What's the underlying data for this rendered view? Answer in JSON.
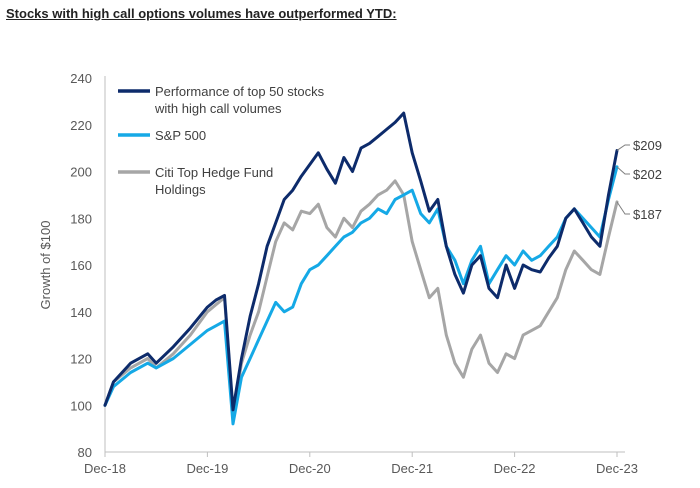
{
  "chart_data": {
    "type": "line",
    "title": "Stocks with high call options volumes have outperformed YTD:",
    "ylabel": "Growth of $100",
    "xlabel": "",
    "ylim": [
      80,
      240
    ],
    "yticks": [
      80,
      100,
      120,
      140,
      160,
      180,
      200,
      220,
      240
    ],
    "xlim": [
      "2018-12",
      "2023-12"
    ],
    "xticks": [
      "Dec-18",
      "Dec-19",
      "Dec-20",
      "Dec-21",
      "Dec-22",
      "Dec-23"
    ],
    "grid": false,
    "legend_position": "top-left",
    "series": [
      {
        "name": "Performance of top 50 stocks with high call volumes",
        "color": "#0d2b6b",
        "end_label": "$209",
        "points": [
          [
            "2018-12",
            100
          ],
          [
            "2019-01",
            110
          ],
          [
            "2019-03",
            118
          ],
          [
            "2019-05",
            122
          ],
          [
            "2019-06",
            118
          ],
          [
            "2019-08",
            125
          ],
          [
            "2019-10",
            133
          ],
          [
            "2019-12",
            142
          ],
          [
            "2020-01",
            145
          ],
          [
            "2020-02",
            147
          ],
          [
            "2020-03",
            98
          ],
          [
            "2020-04",
            120
          ],
          [
            "2020-05",
            138
          ],
          [
            "2020-06",
            152
          ],
          [
            "2020-07",
            168
          ],
          [
            "2020-08",
            178
          ],
          [
            "2020-09",
            188
          ],
          [
            "2020-10",
            192
          ],
          [
            "2020-11",
            198
          ],
          [
            "2020-12",
            203
          ],
          [
            "2021-01",
            208
          ],
          [
            "2021-02",
            201
          ],
          [
            "2021-03",
            195
          ],
          [
            "2021-04",
            206
          ],
          [
            "2021-05",
            200
          ],
          [
            "2021-06",
            210
          ],
          [
            "2021-07",
            212
          ],
          [
            "2021-08",
            215
          ],
          [
            "2021-09",
            218
          ],
          [
            "2021-10",
            221
          ],
          [
            "2021-11",
            225
          ],
          [
            "2021-12",
            208
          ],
          [
            "2022-01",
            196
          ],
          [
            "2022-02",
            183
          ],
          [
            "2022-03",
            188
          ],
          [
            "2022-04",
            168
          ],
          [
            "2022-05",
            156
          ],
          [
            "2022-06",
            148
          ],
          [
            "2022-07",
            160
          ],
          [
            "2022-08",
            164
          ],
          [
            "2022-09",
            150
          ],
          [
            "2022-10",
            146
          ],
          [
            "2022-11",
            160
          ],
          [
            "2022-12",
            150
          ],
          [
            "2023-01",
            160
          ],
          [
            "2023-02",
            158
          ],
          [
            "2023-03",
            157
          ],
          [
            "2023-04",
            163
          ],
          [
            "2023-05",
            168
          ],
          [
            "2023-06",
            180
          ],
          [
            "2023-07",
            184
          ],
          [
            "2023-08",
            178
          ],
          [
            "2023-09",
            172
          ],
          [
            "2023-10",
            168
          ],
          [
            "2023-11",
            190
          ],
          [
            "2023-12",
            209
          ]
        ]
      },
      {
        "name": "S&P 500",
        "color": "#15a9e6",
        "end_label": "$202",
        "points": [
          [
            "2018-12",
            100
          ],
          [
            "2019-01",
            108
          ],
          [
            "2019-03",
            114
          ],
          [
            "2019-05",
            118
          ],
          [
            "2019-06",
            116
          ],
          [
            "2019-08",
            120
          ],
          [
            "2019-10",
            126
          ],
          [
            "2019-12",
            132
          ],
          [
            "2020-01",
            134
          ],
          [
            "2020-02",
            136
          ],
          [
            "2020-03",
            92
          ],
          [
            "2020-04",
            112
          ],
          [
            "2020-05",
            120
          ],
          [
            "2020-06",
            128
          ],
          [
            "2020-07",
            136
          ],
          [
            "2020-08",
            144
          ],
          [
            "2020-09",
            140
          ],
          [
            "2020-10",
            142
          ],
          [
            "2020-11",
            152
          ],
          [
            "2020-12",
            158
          ],
          [
            "2021-01",
            160
          ],
          [
            "2021-02",
            164
          ],
          [
            "2021-03",
            168
          ],
          [
            "2021-04",
            172
          ],
          [
            "2021-05",
            174
          ],
          [
            "2021-06",
            178
          ],
          [
            "2021-07",
            180
          ],
          [
            "2021-08",
            184
          ],
          [
            "2021-09",
            182
          ],
          [
            "2021-10",
            188
          ],
          [
            "2021-11",
            190
          ],
          [
            "2021-12",
            192
          ],
          [
            "2022-01",
            182
          ],
          [
            "2022-02",
            178
          ],
          [
            "2022-03",
            184
          ],
          [
            "2022-04",
            168
          ],
          [
            "2022-05",
            162
          ],
          [
            "2022-06",
            152
          ],
          [
            "2022-07",
            162
          ],
          [
            "2022-08",
            168
          ],
          [
            "2022-09",
            152
          ],
          [
            "2022-10",
            158
          ],
          [
            "2022-11",
            164
          ],
          [
            "2022-12",
            160
          ],
          [
            "2023-01",
            166
          ],
          [
            "2023-02",
            162
          ],
          [
            "2023-03",
            164
          ],
          [
            "2023-04",
            168
          ],
          [
            "2023-05",
            172
          ],
          [
            "2023-06",
            180
          ],
          [
            "2023-07",
            184
          ],
          [
            "2023-08",
            180
          ],
          [
            "2023-09",
            176
          ],
          [
            "2023-10",
            172
          ],
          [
            "2023-11",
            188
          ],
          [
            "2023-12",
            202
          ]
        ]
      },
      {
        "name": "Citi Top Hedge Fund Holdings",
        "color": "#a6a6a6",
        "end_label": "$187",
        "points": [
          [
            "2018-12",
            100
          ],
          [
            "2019-01",
            110
          ],
          [
            "2019-03",
            116
          ],
          [
            "2019-05",
            120
          ],
          [
            "2019-06",
            116
          ],
          [
            "2019-08",
            122
          ],
          [
            "2019-10",
            130
          ],
          [
            "2019-12",
            140
          ],
          [
            "2020-01",
            143
          ],
          [
            "2020-02",
            146
          ],
          [
            "2020-03",
            96
          ],
          [
            "2020-04",
            118
          ],
          [
            "2020-05",
            130
          ],
          [
            "2020-06",
            140
          ],
          [
            "2020-07",
            155
          ],
          [
            "2020-08",
            170
          ],
          [
            "2020-09",
            178
          ],
          [
            "2020-10",
            175
          ],
          [
            "2020-11",
            183
          ],
          [
            "2020-12",
            182
          ],
          [
            "2021-01",
            186
          ],
          [
            "2021-02",
            176
          ],
          [
            "2021-03",
            172
          ],
          [
            "2021-04",
            180
          ],
          [
            "2021-05",
            176
          ],
          [
            "2021-06",
            183
          ],
          [
            "2021-07",
            186
          ],
          [
            "2021-08",
            190
          ],
          [
            "2021-09",
            192
          ],
          [
            "2021-10",
            196
          ],
          [
            "2021-11",
            190
          ],
          [
            "2021-12",
            170
          ],
          [
            "2022-01",
            158
          ],
          [
            "2022-02",
            146
          ],
          [
            "2022-03",
            150
          ],
          [
            "2022-04",
            130
          ],
          [
            "2022-05",
            118
          ],
          [
            "2022-06",
            112
          ],
          [
            "2022-07",
            124
          ],
          [
            "2022-08",
            130
          ],
          [
            "2022-09",
            118
          ],
          [
            "2022-10",
            114
          ],
          [
            "2022-11",
            122
          ],
          [
            "2022-12",
            120
          ],
          [
            "2023-01",
            130
          ],
          [
            "2023-02",
            132
          ],
          [
            "2023-03",
            134
          ],
          [
            "2023-04",
            140
          ],
          [
            "2023-05",
            146
          ],
          [
            "2023-06",
            158
          ],
          [
            "2023-07",
            166
          ],
          [
            "2023-08",
            162
          ],
          [
            "2023-09",
            158
          ],
          [
            "2023-10",
            156
          ],
          [
            "2023-11",
            172
          ],
          [
            "2023-12",
            187
          ]
        ]
      }
    ],
    "legend": [
      {
        "series": 0,
        "lines": [
          "Performance of top 50 stocks",
          "with high call volumes"
        ]
      },
      {
        "series": 1,
        "lines": [
          "S&P 500"
        ]
      },
      {
        "series": 2,
        "lines": [
          "Citi Top Hedge Fund",
          "Holdings"
        ]
      }
    ]
  }
}
